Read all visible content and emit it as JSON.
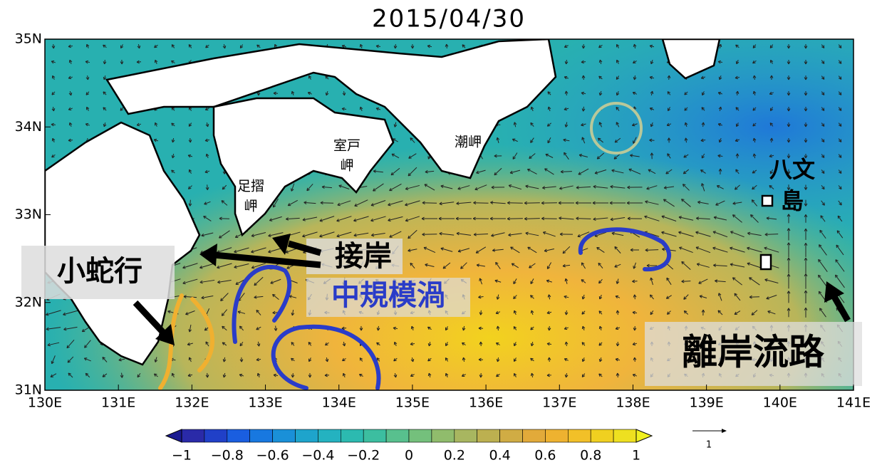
{
  "map": {
    "title": "2015/04/30",
    "xlim": [
      130,
      141
    ],
    "ylim": [
      31,
      35
    ],
    "xticks": [
      {
        "value": 130,
        "label": "130E"
      },
      {
        "value": 131,
        "label": "131E"
      },
      {
        "value": 132,
        "label": "132E"
      },
      {
        "value": 133,
        "label": "133E"
      },
      {
        "value": 134,
        "label": "134E"
      },
      {
        "value": 135,
        "label": "135E"
      },
      {
        "value": 136,
        "label": "136E"
      },
      {
        "value": 137,
        "label": "137E"
      },
      {
        "value": 138,
        "label": "138E"
      },
      {
        "value": 139,
        "label": "139E"
      },
      {
        "value": 140,
        "label": "140E"
      },
      {
        "value": 141,
        "label": "141E"
      }
    ],
    "yticks": [
      {
        "value": 31,
        "label": "31N"
      },
      {
        "value": 32,
        "label": "32N"
      },
      {
        "value": 33,
        "label": "33N"
      },
      {
        "value": 34,
        "label": "34N"
      },
      {
        "value": 35,
        "label": "35N"
      }
    ],
    "places": [
      {
        "lines": [
          "足摺",
          "岬"
        ]
      },
      {
        "lines": [
          "室戸",
          "岬"
        ]
      },
      {
        "lines": [
          "潮岬"
        ]
      },
      {
        "lines": [
          "八文",
          "島"
        ]
      }
    ],
    "annotations": [
      "小蛇行",
      "接岸",
      "中規模渦",
      "離岸流路"
    ],
    "colorbar": {
      "lim": [
        -1,
        1
      ],
      "ticks": [
        {
          "value": -1,
          "label": "−1"
        },
        {
          "value": -0.8,
          "label": "−0.8"
        },
        {
          "value": -0.6,
          "label": "−0.6"
        },
        {
          "value": -0.4,
          "label": "−0.4"
        },
        {
          "value": -0.2,
          "label": "−0.2"
        },
        0,
        0.2,
        0.4,
        0.6,
        0.8,
        1
      ]
    },
    "reference_arrow": "1"
  }
}
